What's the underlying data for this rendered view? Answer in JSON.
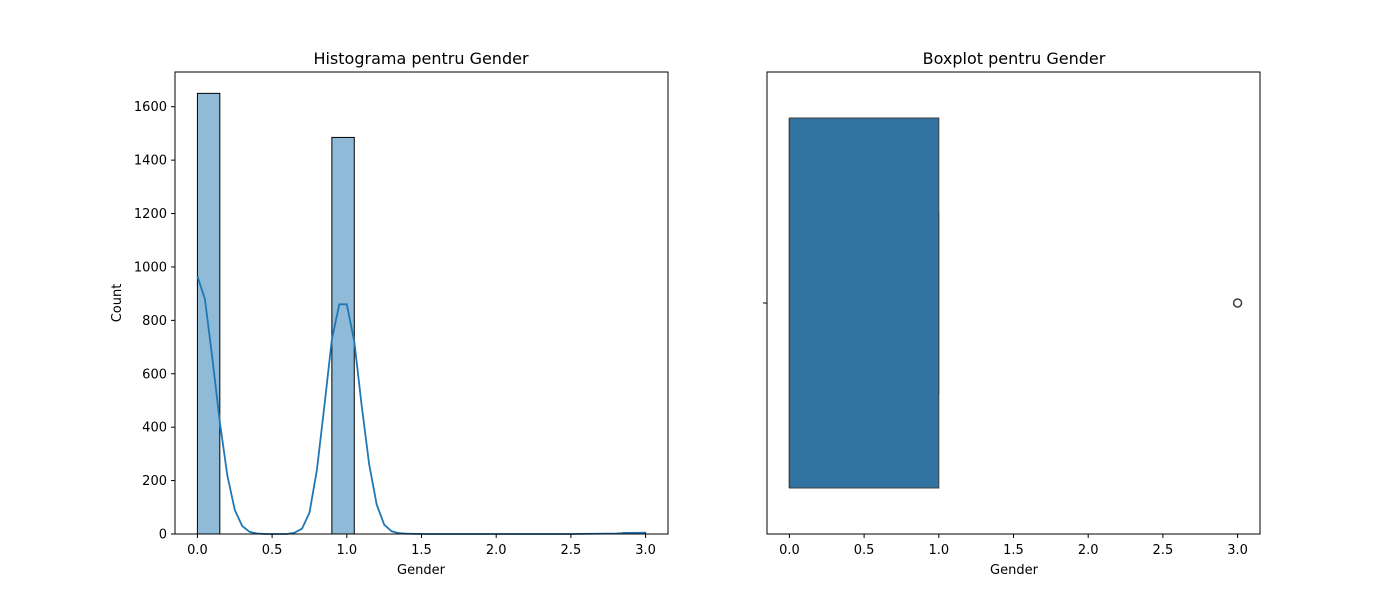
{
  "chart_data": [
    {
      "type": "bar",
      "title": "Histograma pentru Gender",
      "xlabel": "Gender",
      "ylabel": "Count",
      "xlim": [
        -0.15,
        3.15
      ],
      "ylim": [
        0,
        1730
      ],
      "xticks": [
        "0.0",
        "0.5",
        "1.0",
        "1.5",
        "2.0",
        "2.5",
        "3.0"
      ],
      "yticks": [
        "0",
        "200",
        "400",
        "600",
        "800",
        "1000",
        "1200",
        "1400",
        "1600"
      ],
      "bins": [
        {
          "x0": 0.0,
          "x1": 0.15,
          "count": 1650
        },
        {
          "x0": 0.9,
          "x1": 1.05,
          "count": 1485
        },
        {
          "x0": 2.85,
          "x1": 3.0,
          "count": 5
        }
      ],
      "bar_color": "#8fbbd9",
      "kde_color": "#1f77b4",
      "kde": {
        "x": [
          0.0,
          0.05,
          0.1,
          0.15,
          0.2,
          0.25,
          0.3,
          0.35,
          0.4,
          0.45,
          0.5,
          0.55,
          0.6,
          0.65,
          0.7,
          0.75,
          0.8,
          0.85,
          0.9,
          0.95,
          1.0,
          1.05,
          1.1,
          1.15,
          1.2,
          1.25,
          1.3,
          1.35,
          1.4,
          1.5,
          2.0,
          2.5,
          2.8,
          2.9,
          3.0
        ],
        "y": [
          965,
          880,
          660,
          420,
          220,
          90,
          30,
          8,
          2,
          0,
          0,
          0,
          0,
          5,
          20,
          80,
          240,
          480,
          730,
          860,
          860,
          720,
          480,
          260,
          110,
          35,
          10,
          3,
          1,
          0,
          0,
          0,
          2,
          4,
          5
        ]
      }
    },
    {
      "type": "boxplot",
      "title": "Boxplot pentru Gender",
      "xlabel": "Gender",
      "xlim": [
        -0.15,
        3.15
      ],
      "xticks": [
        "0.0",
        "0.5",
        "1.0",
        "1.5",
        "2.0",
        "2.5",
        "3.0"
      ],
      "box": {
        "q1": 0.0,
        "median": 0.0,
        "q3": 1.0,
        "whisker_low": 0.0,
        "whisker_high": 1.0
      },
      "outliers": [
        3.0
      ],
      "box_color": "#3274a1"
    }
  ]
}
